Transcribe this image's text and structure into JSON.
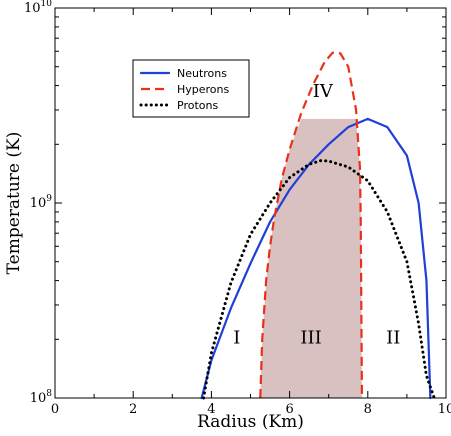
{
  "chart_data": {
    "type": "line",
    "xlabel": "Radius (Km)",
    "ylabel": "Temperature (K)",
    "xlim": [
      0,
      10
    ],
    "ylim": [
      100000000,
      10000000000
    ],
    "yscale": "log",
    "x_ticks": [
      0,
      2,
      4,
      6,
      8,
      10
    ],
    "x_tick_labels": [
      "0",
      "2",
      "4",
      "6",
      "8",
      "10"
    ],
    "y_ticks": [
      100000000,
      1000000000,
      10000000000
    ],
    "y_tick_labels": [
      {
        "base": "10",
        "exp": "8"
      },
      {
        "base": "10",
        "exp": "9"
      },
      {
        "base": "10",
        "exp": "10"
      }
    ],
    "legend_position": "upper-left",
    "colors": {
      "neutrons": "#1f3fd6",
      "hyperons": "#e8311a",
      "protons": "#000000",
      "shaded_region": "#d9c1c1"
    },
    "series": [
      {
        "name": "Neutrons",
        "style": "solid",
        "x": [
          3.75,
          4.0,
          4.5,
          5.0,
          5.5,
          6.0,
          6.5,
          7.0,
          7.5,
          8.0,
          8.5,
          9.0,
          9.3,
          9.5,
          9.6
        ],
        "y": [
          100000000,
          156000000,
          289000000,
          490000000,
          800000000,
          1170000000,
          1580000000,
          2000000000,
          2450000000,
          2700000000,
          2450000000,
          1750000000,
          1000000000,
          400000000,
          100000000
        ]
      },
      {
        "name": "Hyperons",
        "style": "dashed",
        "x": [
          5.25,
          5.3,
          5.4,
          5.5,
          5.6,
          5.8,
          6.0,
          6.3,
          6.6,
          6.9,
          7.1,
          7.3,
          7.5,
          7.7,
          7.8,
          7.82,
          7.85
        ],
        "y": [
          100000000,
          200000000,
          400000000,
          600000000,
          820000000,
          1330000000,
          1880000000,
          2900000000,
          4050000000,
          5300000000,
          5900000000,
          5850000000,
          5000000000,
          3000000000,
          1500000000,
          800000000,
          100000000
        ]
      },
      {
        "name": "Protons",
        "style": "dotted",
        "x": [
          3.8,
          4.0,
          4.5,
          5.0,
          5.5,
          6.0,
          6.5,
          6.8,
          7.0,
          7.5,
          8.0,
          8.5,
          9.0,
          9.3,
          9.5,
          9.7
        ],
        "y": [
          100000000,
          170000000,
          390000000,
          690000000,
          1000000000,
          1350000000,
          1580000000,
          1650000000,
          1640000000,
          1530000000,
          1300000000,
          900000000,
          500000000,
          240000000,
          130000000,
          100000000
        ]
      }
    ],
    "region_labels": [
      {
        "text": "I",
        "x": 4.65,
        "y": 190000000
      },
      {
        "text": "III",
        "x": 6.55,
        "y": 190000000
      },
      {
        "text": "II",
        "x": 8.65,
        "y": 190000000
      },
      {
        "text": "IV",
        "x": 6.85,
        "y": 3500000000
      }
    ]
  }
}
